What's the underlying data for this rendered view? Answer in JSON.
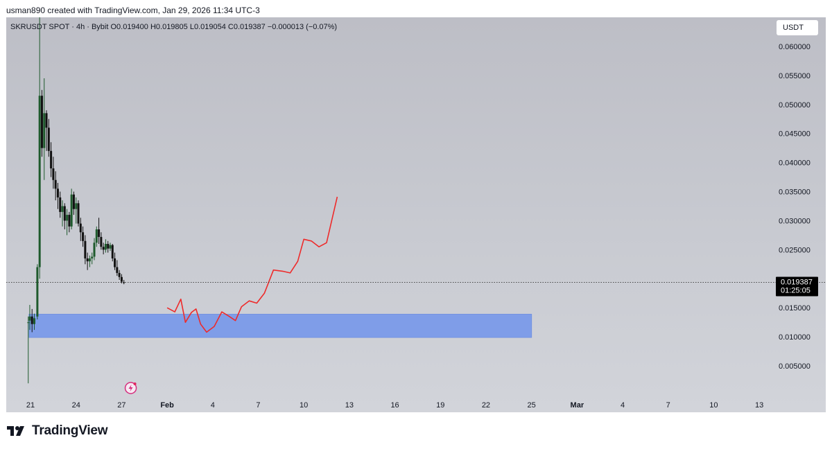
{
  "header": {
    "byline": "usman890 created with TradingView.com, Jan 29, 2026 11:34 UTC-3"
  },
  "legend": {
    "symbol_line": "SKRUSDT SPOT · 4h · Bybit  O0.019400  H0.019805  L0.019054  C0.019387  −0.000013 (−0.07%)"
  },
  "currency_button": "USDT",
  "brand": {
    "name": "TradingView"
  },
  "colors": {
    "candle_up": "#1e5a2c",
    "candle_down": "#111111",
    "projection": "#ee2a2a",
    "zone_fill": "#7b9bea",
    "zone_stroke": "#6f8fe2",
    "price_tag_bg": "#000000"
  },
  "chart_data": {
    "type": "candlestick",
    "symbol": "SKRUSDT",
    "interval": "4h",
    "exchange": "Bybit",
    "last_ohlc": {
      "open": 0.0194,
      "high": 0.019805,
      "low": 0.019054,
      "close": 0.019387,
      "change": -1.3e-05,
      "change_pct": -0.07
    },
    "last_price_label": "0.019387",
    "countdown_label": "01:25:05",
    "y_axis": {
      "ticks": [
        0.005,
        0.01,
        0.015,
        0.02,
        0.025,
        0.03,
        0.035,
        0.04,
        0.045,
        0.05,
        0.055,
        0.06
      ],
      "tick_labels": [
        "0.005000",
        "0.010000",
        "0.015000",
        "",
        "0.025000",
        "0.030000",
        "0.035000",
        "0.040000",
        "0.045000",
        "0.050000",
        "0.055000",
        "0.060000"
      ],
      "range": [
        0.0,
        0.065
      ]
    },
    "x_axis": {
      "tick_labels": [
        {
          "day": 21,
          "label": "21"
        },
        {
          "day": 24,
          "label": "24"
        },
        {
          "day": 27,
          "label": "27"
        },
        {
          "day": 30,
          "label": "Feb"
        },
        {
          "day": 33,
          "label": "4"
        },
        {
          "day": 36,
          "label": "7"
        },
        {
          "day": 39,
          "label": "10"
        },
        {
          "day": 42,
          "label": "13"
        },
        {
          "day": 45,
          "label": "16"
        },
        {
          "day": 48,
          "label": "19"
        },
        {
          "day": 51,
          "label": "22"
        },
        {
          "day": 54,
          "label": "25"
        },
        {
          "day": 57,
          "label": "Mar"
        },
        {
          "day": 60,
          "label": "4"
        },
        {
          "day": 63,
          "label": "7"
        },
        {
          "day": 66,
          "label": "10"
        },
        {
          "day": 69,
          "label": "13"
        }
      ],
      "range_days": [
        19.4,
        70.0
      ]
    },
    "candles": [
      {
        "t": 20.85,
        "o": 0.0125,
        "h": 0.0135,
        "l": 0.002,
        "c": 0.0125
      },
      {
        "t": 20.95,
        "o": 0.0128,
        "h": 0.0155,
        "l": 0.0112,
        "c": 0.0135
      },
      {
        "t": 21.1,
        "o": 0.0135,
        "h": 0.0148,
        "l": 0.0108,
        "c": 0.0122
      },
      {
        "t": 21.25,
        "o": 0.0122,
        "h": 0.014,
        "l": 0.0112,
        "c": 0.0132
      },
      {
        "t": 21.45,
        "o": 0.0135,
        "h": 0.0225,
        "l": 0.013,
        "c": 0.022
      },
      {
        "t": 21.6,
        "o": 0.022,
        "h": 0.0675,
        "l": 0.02,
        "c": 0.0515
      },
      {
        "t": 21.75,
        "o": 0.0515,
        "h": 0.0525,
        "l": 0.041,
        "c": 0.0425
      },
      {
        "t": 21.9,
        "o": 0.0425,
        "h": 0.0545,
        "l": 0.037,
        "c": 0.0485
      },
      {
        "t": 22.05,
        "o": 0.0485,
        "h": 0.049,
        "l": 0.042,
        "c": 0.046
      },
      {
        "t": 22.2,
        "o": 0.046,
        "h": 0.0475,
        "l": 0.041,
        "c": 0.042
      },
      {
        "t": 22.35,
        "o": 0.042,
        "h": 0.0435,
        "l": 0.0375,
        "c": 0.039
      },
      {
        "t": 22.5,
        "o": 0.039,
        "h": 0.041,
        "l": 0.0355,
        "c": 0.037
      },
      {
        "t": 22.65,
        "o": 0.037,
        "h": 0.0385,
        "l": 0.0335,
        "c": 0.0355
      },
      {
        "t": 22.8,
        "o": 0.0355,
        "h": 0.0365,
        "l": 0.032,
        "c": 0.034
      },
      {
        "t": 22.95,
        "o": 0.034,
        "h": 0.035,
        "l": 0.0305,
        "c": 0.0315
      },
      {
        "t": 23.1,
        "o": 0.0315,
        "h": 0.0335,
        "l": 0.029,
        "c": 0.0325
      },
      {
        "t": 23.25,
        "o": 0.0325,
        "h": 0.033,
        "l": 0.0285,
        "c": 0.03
      },
      {
        "t": 23.4,
        "o": 0.03,
        "h": 0.032,
        "l": 0.0275,
        "c": 0.031
      },
      {
        "t": 23.55,
        "o": 0.031,
        "h": 0.0315,
        "l": 0.028,
        "c": 0.029
      },
      {
        "t": 23.7,
        "o": 0.029,
        "h": 0.0355,
        "l": 0.0285,
        "c": 0.0345
      },
      {
        "t": 23.85,
        "o": 0.0345,
        "h": 0.035,
        "l": 0.031,
        "c": 0.032
      },
      {
        "t": 24.0,
        "o": 0.032,
        "h": 0.034,
        "l": 0.0295,
        "c": 0.033
      },
      {
        "t": 24.15,
        "o": 0.033,
        "h": 0.0335,
        "l": 0.029,
        "c": 0.0295
      },
      {
        "t": 24.3,
        "o": 0.0295,
        "h": 0.0305,
        "l": 0.0265,
        "c": 0.028
      },
      {
        "t": 24.45,
        "o": 0.028,
        "h": 0.029,
        "l": 0.0255,
        "c": 0.0265
      },
      {
        "t": 24.6,
        "o": 0.0265,
        "h": 0.0275,
        "l": 0.0225,
        "c": 0.0235
      },
      {
        "t": 24.75,
        "o": 0.0235,
        "h": 0.0245,
        "l": 0.0215,
        "c": 0.023
      },
      {
        "t": 24.9,
        "o": 0.023,
        "h": 0.024,
        "l": 0.022,
        "c": 0.0235
      },
      {
        "t": 25.05,
        "o": 0.0235,
        "h": 0.0245,
        "l": 0.0225,
        "c": 0.0238
      },
      {
        "t": 25.2,
        "o": 0.0238,
        "h": 0.027,
        "l": 0.0232,
        "c": 0.0262
      },
      {
        "t": 25.35,
        "o": 0.0262,
        "h": 0.029,
        "l": 0.0255,
        "c": 0.0285
      },
      {
        "t": 25.5,
        "o": 0.0285,
        "h": 0.0305,
        "l": 0.026,
        "c": 0.0272
      },
      {
        "t": 25.65,
        "o": 0.0272,
        "h": 0.028,
        "l": 0.025,
        "c": 0.0255
      },
      {
        "t": 25.8,
        "o": 0.0255,
        "h": 0.0262,
        "l": 0.0242,
        "c": 0.025
      },
      {
        "t": 25.95,
        "o": 0.025,
        "h": 0.0268,
        "l": 0.0245,
        "c": 0.026
      },
      {
        "t": 26.1,
        "o": 0.026,
        "h": 0.0265,
        "l": 0.0245,
        "c": 0.0252
      },
      {
        "t": 26.25,
        "o": 0.0252,
        "h": 0.0262,
        "l": 0.0248,
        "c": 0.0258
      },
      {
        "t": 26.4,
        "o": 0.0258,
        "h": 0.026,
        "l": 0.023,
        "c": 0.0235
      },
      {
        "t": 26.55,
        "o": 0.0235,
        "h": 0.0245,
        "l": 0.0215,
        "c": 0.022
      },
      {
        "t": 26.7,
        "o": 0.022,
        "h": 0.0232,
        "l": 0.0205,
        "c": 0.021
      },
      {
        "t": 26.85,
        "o": 0.021,
        "h": 0.0215,
        "l": 0.0198,
        "c": 0.0203
      },
      {
        "t": 27.0,
        "o": 0.0203,
        "h": 0.0208,
        "l": 0.0192,
        "c": 0.0195
      },
      {
        "t": 27.15,
        "o": 0.0194,
        "h": 0.019805,
        "l": 0.019054,
        "c": 0.019387
      }
    ],
    "demand_zone": {
      "from_day": 20.9,
      "to_day": 54.0,
      "low": 0.0099,
      "high": 0.0139
    },
    "projection_path": [
      [
        30.0,
        0.015
      ],
      [
        30.5,
        0.0143
      ],
      [
        30.9,
        0.0165
      ],
      [
        31.2,
        0.0125
      ],
      [
        31.6,
        0.0142
      ],
      [
        31.9,
        0.0148
      ],
      [
        32.2,
        0.0122
      ],
      [
        32.6,
        0.0108
      ],
      [
        33.1,
        0.0118
      ],
      [
        33.6,
        0.0143
      ],
      [
        34.1,
        0.0135
      ],
      [
        34.5,
        0.0128
      ],
      [
        34.9,
        0.0152
      ],
      [
        35.4,
        0.0162
      ],
      [
        35.9,
        0.0158
      ],
      [
        36.4,
        0.0175
      ],
      [
        37.0,
        0.0215
      ],
      [
        37.6,
        0.0213
      ],
      [
        38.1,
        0.021
      ],
      [
        38.6,
        0.023
      ],
      [
        39.0,
        0.0268
      ],
      [
        39.5,
        0.0265
      ],
      [
        40.0,
        0.0255
      ],
      [
        40.5,
        0.0262
      ],
      [
        41.2,
        0.0341
      ]
    ]
  }
}
